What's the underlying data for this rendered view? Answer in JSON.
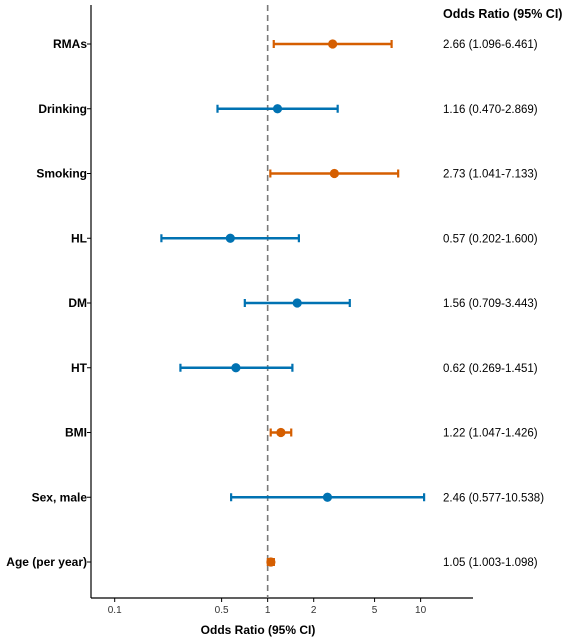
{
  "chart_data": {
    "type": "scatter",
    "subtype": "forest-plot",
    "xlabel": "Odds Ratio (95% CI)",
    "column_header": "Odds Ratio (95% CI)",
    "x_scale": "log",
    "xlim": [
      0.07,
      22
    ],
    "x_ticks": [
      0.1,
      0.5,
      1,
      2,
      5,
      10
    ],
    "x_tick_labels": [
      "0.1",
      "0.5",
      "1",
      "2",
      "5",
      "10"
    ],
    "reference_line": 1,
    "colors": {
      "significant": "#D55E00",
      "not_significant": "#0072B2"
    },
    "rows": [
      {
        "label": "RMAs",
        "or": 2.66,
        "lo": 1.096,
        "hi": 6.461,
        "text": "2.66 (1.096-6.461)",
        "significant": true
      },
      {
        "label": "Drinking",
        "or": 1.16,
        "lo": 0.47,
        "hi": 2.869,
        "text": "1.16 (0.470-2.869)",
        "significant": false
      },
      {
        "label": "Smoking",
        "or": 2.73,
        "lo": 1.041,
        "hi": 7.133,
        "text": "2.73 (1.041-7.133)",
        "significant": true
      },
      {
        "label": "HL",
        "or": 0.57,
        "lo": 0.202,
        "hi": 1.6,
        "text": "0.57 (0.202-1.600)",
        "significant": false
      },
      {
        "label": "DM",
        "or": 1.56,
        "lo": 0.709,
        "hi": 3.443,
        "text": "1.56 (0.709-3.443)",
        "significant": false
      },
      {
        "label": "HT",
        "or": 0.62,
        "lo": 0.269,
        "hi": 1.451,
        "text": "0.62 (0.269-1.451)",
        "significant": false
      },
      {
        "label": "BMI",
        "or": 1.22,
        "lo": 1.047,
        "hi": 1.426,
        "text": "1.22 (1.047-1.426)",
        "significant": true
      },
      {
        "label": "Sex, male",
        "or": 2.46,
        "lo": 0.577,
        "hi": 10.538,
        "text": "2.46 (0.577-10.538)",
        "significant": false
      },
      {
        "label": "Age (per year)",
        "or": 1.05,
        "lo": 1.003,
        "hi": 1.098,
        "text": "1.05 (1.003-1.098)",
        "significant": true
      }
    ]
  }
}
